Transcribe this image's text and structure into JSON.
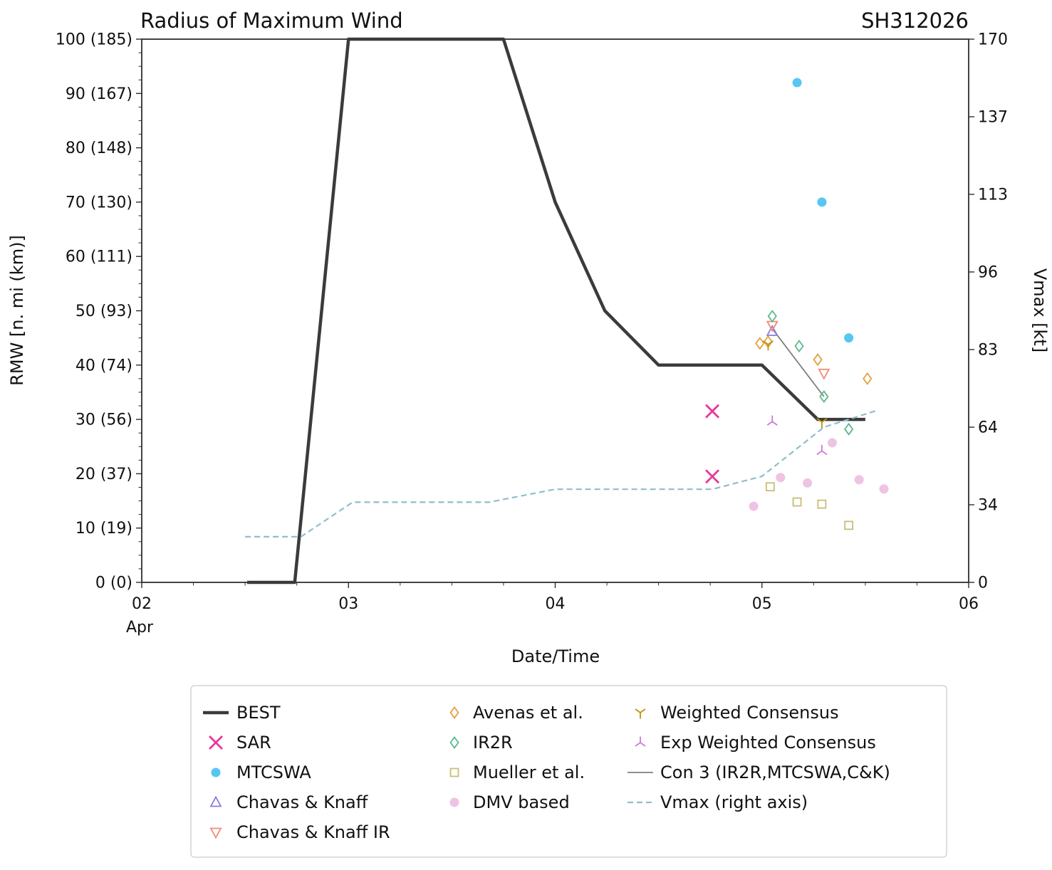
{
  "header": {
    "title": "Radius of Maximum Wind",
    "storm_id": "SH312026"
  },
  "chart_data": {
    "type": "line",
    "title": "Radius of Maximum Wind",
    "annotation": "SH312026",
    "xlabel": "Date/Time",
    "ylabel_left": "RMW [n. mi (km)]",
    "ylabel_right": "Vmax [kt]",
    "x_month_label": "Apr",
    "xlim": [
      2,
      6
    ],
    "ylim_left": [
      0,
      100
    ],
    "x_minor_step": 0.25,
    "y_minor_step": 2.5,
    "x_ticks": [
      {
        "v": 2,
        "label": "02"
      },
      {
        "v": 3,
        "label": "03"
      },
      {
        "v": 4,
        "label": "04"
      },
      {
        "v": 5,
        "label": "05"
      },
      {
        "v": 6,
        "label": "06"
      }
    ],
    "y_ticks_left": [
      {
        "v": 0,
        "label": "0 (0)"
      },
      {
        "v": 10,
        "label": "10 (19)"
      },
      {
        "v": 20,
        "label": "20 (37)"
      },
      {
        "v": 30,
        "label": "30 (56)"
      },
      {
        "v": 40,
        "label": "40 (74)"
      },
      {
        "v": 50,
        "label": "50 (93)"
      },
      {
        "v": 60,
        "label": "60 (111)"
      },
      {
        "v": 70,
        "label": "70 (130)"
      },
      {
        "v": 80,
        "label": "80 (148)"
      },
      {
        "v": 90,
        "label": "90 (167)"
      },
      {
        "v": 100,
        "label": "100 (185)"
      }
    ],
    "right_axis_kt_ticks": [
      0,
      34,
      64,
      83,
      96,
      113,
      137,
      170
    ],
    "grid": false,
    "legend_position": "bottom",
    "series": [
      {
        "name": "BEST",
        "kind": "line",
        "color": "#3b3b3b",
        "width": 4.5,
        "points": [
          [
            2.51,
            0
          ],
          [
            2.74,
            0
          ],
          [
            3.0,
            100
          ],
          [
            3.75,
            100
          ],
          [
            4.0,
            70
          ],
          [
            4.24,
            50
          ],
          [
            4.5,
            40
          ],
          [
            5.0,
            40
          ],
          [
            5.27,
            30
          ],
          [
            5.5,
            30
          ]
        ]
      },
      {
        "name": "Vmax (right axis)",
        "kind": "line",
        "axis": "right",
        "dash": "8 5",
        "color": "#8fbecb",
        "width": 2.2,
        "points_kt": [
          [
            2.5,
            20
          ],
          [
            2.77,
            20
          ],
          [
            3.02,
            35
          ],
          [
            3.68,
            35
          ],
          [
            4.0,
            40
          ],
          [
            4.76,
            40
          ],
          [
            5.0,
            45
          ],
          [
            5.3,
            64
          ],
          [
            5.55,
            68
          ]
        ]
      },
      {
        "name": "Con 3 (IR2R,MTCSWA,C&K)",
        "kind": "line",
        "color": "#7f7f7f",
        "width": 1.8,
        "points": [
          [
            5.05,
            46.7
          ],
          [
            5.3,
            34.2
          ]
        ]
      },
      {
        "name": "SAR",
        "kind": "scatter",
        "marker": "x",
        "color": "#e8379c",
        "points": [
          [
            4.76,
            31.5
          ],
          [
            4.76,
            19.5
          ]
        ]
      },
      {
        "name": "MTCSWA",
        "kind": "scatter",
        "marker": "circle",
        "color": "#57c7f2",
        "points": [
          [
            5.17,
            92
          ],
          [
            5.29,
            70
          ],
          [
            5.42,
            45
          ]
        ]
      },
      {
        "name": "Chavas & Knaff",
        "kind": "scatter",
        "marker": "triangle-up",
        "color": "#8a7ae0",
        "points": [
          [
            5.05,
            46.2
          ]
        ]
      },
      {
        "name": "Chavas & Knaff IR",
        "kind": "scatter",
        "marker": "triangle-down",
        "color": "#f0897a",
        "points": [
          [
            5.05,
            47.3
          ],
          [
            5.3,
            38.5
          ]
        ]
      },
      {
        "name": "Avenas et al.",
        "kind": "scatter",
        "marker": "diamond",
        "color": "#e2a13a",
        "points": [
          [
            4.99,
            44
          ],
          [
            5.03,
            44.3
          ],
          [
            5.27,
            41
          ],
          [
            5.51,
            37.5
          ]
        ]
      },
      {
        "name": "IR2R",
        "kind": "scatter",
        "marker": "diamond",
        "color": "#5cb88c",
        "points": [
          [
            5.05,
            49
          ],
          [
            5.18,
            43.5
          ],
          [
            5.3,
            34.2
          ],
          [
            5.42,
            28.2
          ]
        ]
      },
      {
        "name": "Mueller et al.",
        "kind": "scatter",
        "marker": "square",
        "color": "#c9bd74",
        "points": [
          [
            5.04,
            17.6
          ],
          [
            5.17,
            14.8
          ],
          [
            5.29,
            14.4
          ],
          [
            5.42,
            10.5
          ]
        ]
      },
      {
        "name": "DMV based",
        "kind": "scatter",
        "marker": "circle",
        "color": "#efc3e2",
        "points": [
          [
            4.96,
            14
          ],
          [
            5.09,
            19.3
          ],
          [
            5.22,
            18.3
          ],
          [
            5.34,
            25.7
          ],
          [
            5.47,
            18.9
          ],
          [
            5.59,
            17.2
          ]
        ]
      },
      {
        "name": "Weighted Consensus",
        "kind": "scatter",
        "marker": "tri-down",
        "color": "#b8960b",
        "points": [
          [
            5.03,
            43.8
          ],
          [
            5.29,
            29.5
          ]
        ]
      },
      {
        "name": "Exp Weighted Consensus",
        "kind": "scatter",
        "marker": "tri-up",
        "color": "#ce79d4",
        "points": [
          [
            5.05,
            29.6
          ],
          [
            5.29,
            24.2
          ]
        ]
      }
    ],
    "legend_columns": [
      [
        "BEST",
        "SAR",
        "MTCSWA",
        "Chavas & Knaff",
        "Chavas & Knaff IR"
      ],
      [
        "Avenas et al.",
        "IR2R",
        "Mueller et al.",
        "DMV based"
      ],
      [
        "Weighted Consensus",
        "Exp Weighted Consensus",
        "Con 3 (IR2R,MTCSWA,C&K)",
        "Vmax (right axis)"
      ]
    ]
  }
}
